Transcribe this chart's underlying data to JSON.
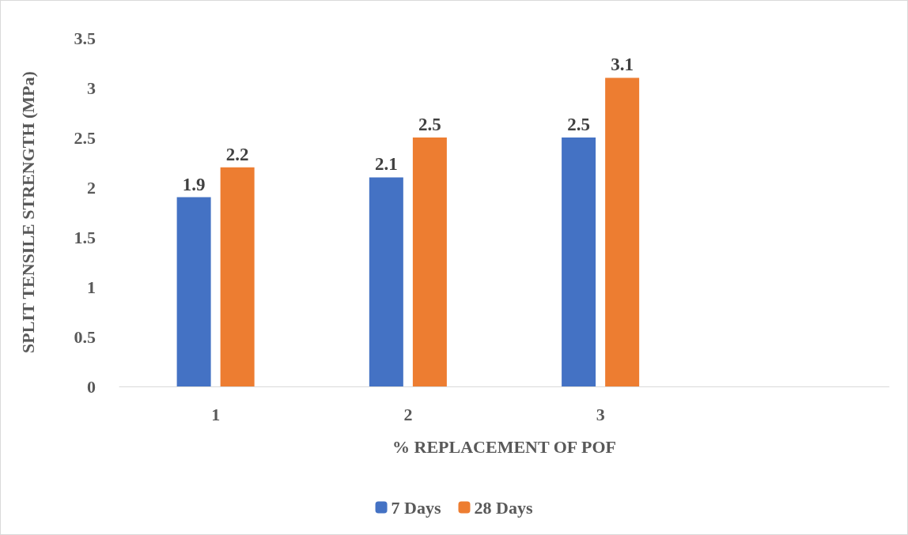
{
  "chart_data": {
    "type": "bar",
    "xlabel": "% REPLACEMENT OF POF",
    "ylabel": "SPLIT TENSILE STRENGTH (MPa)",
    "categories": [
      "1",
      "2",
      "3",
      null
    ],
    "series": [
      {
        "name": "7 Days",
        "color": "#4472c4",
        "values": [
          1.9,
          2.1,
          2.5,
          null
        ]
      },
      {
        "name": "28 Days",
        "color": "#ed7d31",
        "values": [
          2.2,
          2.5,
          3.1,
          null
        ]
      }
    ],
    "ylim": [
      0,
      3.5
    ],
    "yticks": [
      0,
      0.5,
      1,
      1.5,
      2,
      2.5,
      3,
      3.5
    ],
    "grid": false,
    "legend": "bottom",
    "data_labels": true
  }
}
